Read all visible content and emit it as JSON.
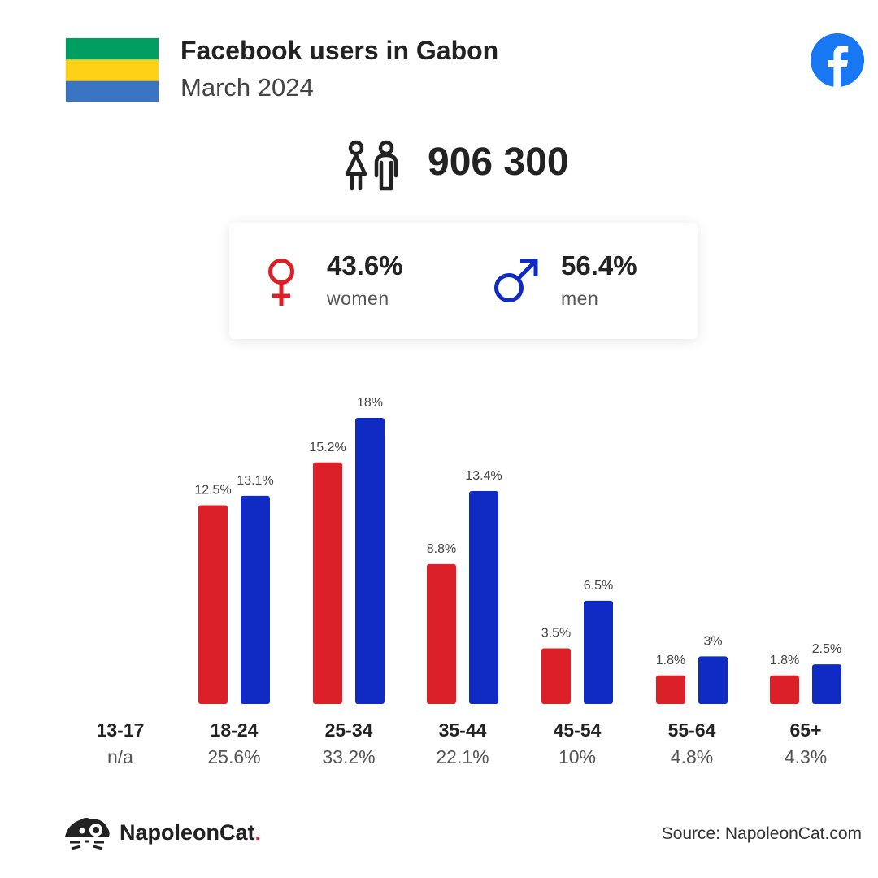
{
  "header": {
    "title": "Facebook users in Gabon",
    "subtitle": "March 2024",
    "flag_icon": "gabon-flag-icon",
    "flag_colors": [
      "#009E60",
      "#FCD116",
      "#3A75C4"
    ],
    "platform_icon": "facebook-logo-icon",
    "platform_color": "#1877F2"
  },
  "total": {
    "icon": "people-icon",
    "value": "906 300"
  },
  "gender": {
    "women": {
      "icon": "female-symbol-icon",
      "pct": "43.6%",
      "label": "women",
      "color": "#DC2028"
    },
    "men": {
      "icon": "male-symbol-icon",
      "pct": "56.4%",
      "label": "men",
      "color": "#0F2BC3"
    }
  },
  "chart_data": {
    "type": "bar",
    "categories": [
      "13-17",
      "18-24",
      "25-34",
      "35-44",
      "45-54",
      "55-64",
      "65+"
    ],
    "category_shares": [
      "n/a",
      "25.6%",
      "33.2%",
      "22.1%",
      "10%",
      "4.8%",
      "4.3%"
    ],
    "series": [
      {
        "color": "#DC2028",
        "values": [
          null,
          12.5,
          15.2,
          8.8,
          3.5,
          1.8,
          1.8
        ],
        "labels": [
          "",
          "12.5%",
          "15.2%",
          "8.8%",
          "3.5%",
          "1.8%",
          "1.8%"
        ]
      },
      {
        "color": "#0F2BC3",
        "values": [
          null,
          13.1,
          18,
          13.4,
          6.5,
          3,
          2.5
        ],
        "labels": [
          "",
          "13.1%",
          "18%",
          "13.4%",
          "6.5%",
          "3%",
          "2.5%"
        ]
      }
    ],
    "ylim": [
      0,
      18
    ],
    "grid": false,
    "title": "",
    "xlabel": "",
    "ylabel": ""
  },
  "footer": {
    "brand_icon": "napoleoncat-logo-icon",
    "brand_name": "NapoleonCat",
    "brand_dot": ".",
    "source": "Source: NapoleonCat.com"
  }
}
